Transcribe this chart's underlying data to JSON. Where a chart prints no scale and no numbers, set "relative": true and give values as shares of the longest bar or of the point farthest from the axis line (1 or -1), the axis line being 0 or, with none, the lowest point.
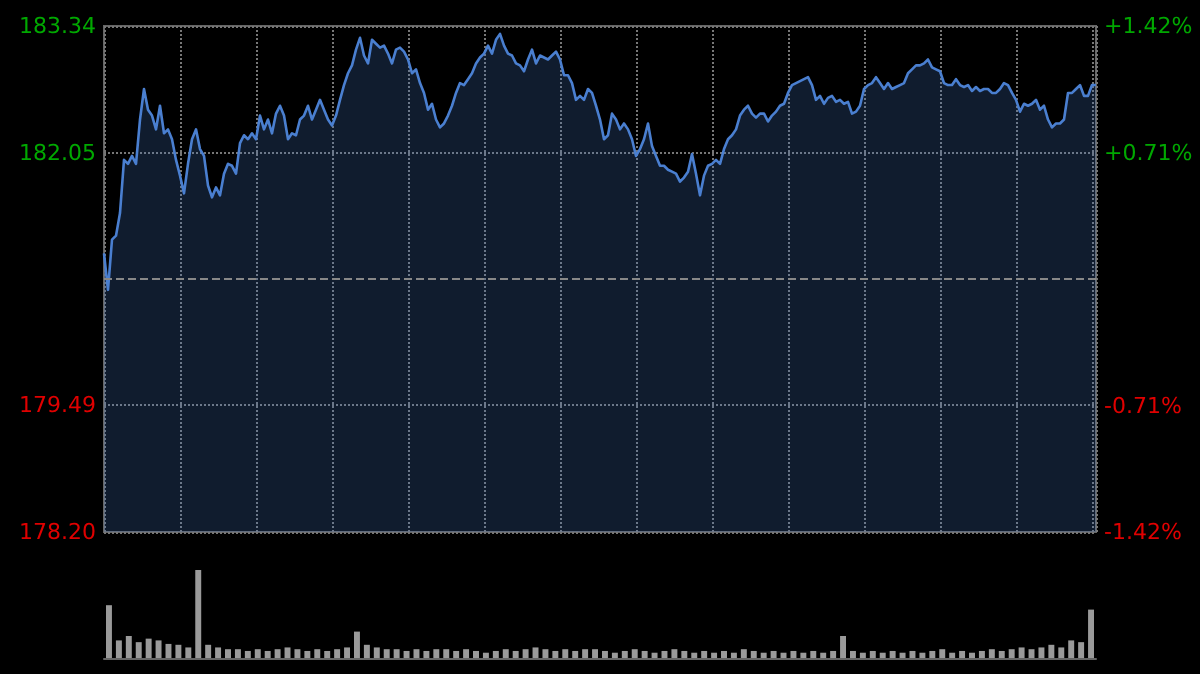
{
  "chart_data": [
    {
      "type": "area",
      "categories": [
        null,
        null,
        null,
        null,
        null,
        null,
        null,
        null,
        null,
        null,
        null,
        null,
        null,
        null,
        null,
        null,
        null,
        null,
        null,
        null,
        null,
        null,
        null,
        null,
        null,
        null,
        null,
        null,
        null,
        null,
        null,
        null,
        null,
        null,
        null,
        null,
        null,
        null,
        null,
        null,
        null,
        null,
        null,
        null,
        null,
        null,
        null,
        null,
        null,
        null,
        null,
        null,
        null,
        null,
        null,
        null,
        null,
        null,
        null,
        null,
        null,
        null,
        null,
        null,
        null,
        null,
        null,
        null,
        null,
        null,
        null,
        null,
        null,
        null,
        null,
        null,
        null,
        null,
        null,
        null,
        null,
        null,
        null,
        null,
        null,
        null,
        null,
        null,
        null,
        null,
        null,
        null,
        null,
        null,
        null,
        null,
        null,
        null,
        null,
        null,
        null,
        null,
        null,
        null,
        null,
        null,
        null,
        null,
        null,
        null,
        null,
        null,
        null,
        null,
        null,
        null,
        null,
        null,
        null,
        null,
        null,
        null,
        null,
        null,
        null,
        null,
        null,
        null,
        null,
        null,
        null,
        null,
        null,
        null,
        null,
        null,
        null,
        null,
        null,
        null,
        null,
        null,
        null,
        null,
        null,
        null,
        null,
        null,
        null,
        null,
        null,
        null,
        null,
        null,
        null,
        null,
        null,
        null,
        null,
        null,
        null,
        null,
        null,
        null,
        null,
        null,
        null,
        null,
        null,
        null,
        null,
        null,
        null,
        null,
        null,
        null,
        null,
        null,
        null,
        null,
        null,
        null,
        null,
        null,
        null,
        null,
        null,
        null,
        null,
        null,
        null,
        null,
        null,
        null,
        null,
        null,
        null,
        null,
        null,
        null,
        null,
        null,
        null,
        null,
        null,
        null,
        null,
        null,
        null,
        null,
        null,
        null,
        null,
        null,
        null,
        null,
        null,
        null,
        null,
        null,
        null,
        null,
        null,
        null,
        null,
        null,
        null,
        null,
        null,
        null,
        null,
        null,
        null,
        null,
        null,
        null,
        null,
        null,
        null,
        null,
        null,
        null,
        null,
        null,
        null,
        null,
        null,
        null,
        null
      ],
      "series": [
        {
          "color": "#4a7fd0",
          "values": [
            181.03,
            180.66,
            181.17,
            181.21,
            181.44,
            181.98,
            181.94,
            182.02,
            181.94,
            182.39,
            182.7,
            182.49,
            182.43,
            182.29,
            182.53,
            182.25,
            182.29,
            182.19,
            181.98,
            181.82,
            181.64,
            181.94,
            182.19,
            182.29,
            182.09,
            182.02,
            181.72,
            181.6,
            181.7,
            181.62,
            181.84,
            181.94,
            181.92,
            181.84,
            182.15,
            182.23,
            182.19,
            182.25,
            182.19,
            182.43,
            182.29,
            182.39,
            182.25,
            182.45,
            182.53,
            182.43,
            182.19,
            182.25,
            182.23,
            182.39,
            182.43,
            182.53,
            182.39,
            182.49,
            182.59,
            182.49,
            182.39,
            182.33,
            182.43,
            182.59,
            182.74,
            182.86,
            182.94,
            183.1,
            183.22,
            183.04,
            182.96,
            183.2,
            183.16,
            183.12,
            183.14,
            183.06,
            182.96,
            183.1,
            183.12,
            183.08,
            183.0,
            182.86,
            182.9,
            182.76,
            182.66,
            182.49,
            182.55,
            182.39,
            182.31,
            182.35,
            182.43,
            182.53,
            182.66,
            182.76,
            182.74,
            182.8,
            182.86,
            182.96,
            183.02,
            183.06,
            183.14,
            183.06,
            183.2,
            183.26,
            183.14,
            183.06,
            183.04,
            182.96,
            182.94,
            182.88,
            183.0,
            183.1,
            182.96,
            183.04,
            183.02,
            183.0,
            183.04,
            183.08,
            183.0,
            182.84,
            182.84,
            182.76,
            182.59,
            182.63,
            182.59,
            182.7,
            182.66,
            182.53,
            182.39,
            182.19,
            182.23,
            182.45,
            182.39,
            182.29,
            182.35,
            182.29,
            182.19,
            182.02,
            182.09,
            182.19,
            182.35,
            182.12,
            182.02,
            181.92,
            181.92,
            181.88,
            181.86,
            181.84,
            181.76,
            181.8,
            181.86,
            182.04,
            181.84,
            181.62,
            181.82,
            181.92,
            181.94,
            181.98,
            181.94,
            182.09,
            182.19,
            182.23,
            182.29,
            182.43,
            182.49,
            182.53,
            182.45,
            182.41,
            182.45,
            182.45,
            182.37,
            182.43,
            182.47,
            182.53,
            182.55,
            182.66,
            182.74,
            182.76,
            182.78,
            182.8,
            182.82,
            182.74,
            182.59,
            182.63,
            182.55,
            182.61,
            182.63,
            182.57,
            182.59,
            182.55,
            182.57,
            182.45,
            182.47,
            182.53,
            182.7,
            182.74,
            182.76,
            182.82,
            182.76,
            182.7,
            182.76,
            182.7,
            182.72,
            182.74,
            182.76,
            182.86,
            182.9,
            182.94,
            182.94,
            182.96,
            183.0,
            182.92,
            182.9,
            182.88,
            182.76,
            182.74,
            182.74,
            182.8,
            182.74,
            182.72,
            182.74,
            182.68,
            182.72,
            182.68,
            182.7,
            182.7,
            182.66,
            182.66,
            182.7,
            182.76,
            182.74,
            182.66,
            182.59,
            182.47,
            182.55,
            182.53,
            182.55,
            182.59,
            182.49,
            182.53,
            182.39,
            182.31,
            182.35,
            182.35,
            182.39,
            182.66,
            182.66,
            182.7,
            182.74,
            182.63,
            182.63,
            182.74,
            182.74
          ]
        }
      ],
      "ylim": [
        178.2,
        183.34
      ],
      "yticks": [
        {
          "value": 178.2,
          "label": "178.20"
        },
        179.49,
        182.05,
        183.34
      ],
      "y2lim": [
        -1.42,
        1.42
      ],
      "y2ticks": [
        {
          "value": -1.42,
          "label": "-1.42%"
        },
        {
          "value": -0.71,
          "label": "-0.71%"
        },
        {
          "value": 0.71,
          "label": "+0.71%"
        },
        {
          "value": 1.42,
          "label": "+1.42%"
        }
      ],
      "ref_lines": [
        {
          "axis": "y",
          "value": 180.77,
          "line_style": "dashed"
        }
      ],
      "grid": true
    },
    {
      "type": "bar",
      "relative": true,
      "categories": [
        null,
        null,
        null,
        null,
        null,
        null,
        null,
        null,
        null,
        null,
        null,
        null,
        null,
        null,
        null,
        null,
        null,
        null,
        null,
        null,
        null,
        null,
        null,
        null,
        null,
        null,
        null,
        null,
        null,
        null,
        null,
        null,
        null,
        null,
        null,
        null,
        null,
        null,
        null,
        null,
        null,
        null,
        null,
        null,
        null,
        null,
        null,
        null,
        null,
        null,
        null,
        null,
        null,
        null,
        null,
        null,
        null,
        null,
        null,
        null,
        null,
        null,
        null,
        null,
        null,
        null,
        null,
        null,
        null,
        null,
        null,
        null,
        null,
        null,
        null,
        null,
        null,
        null,
        null,
        null,
        null,
        null,
        null,
        null,
        null,
        null,
        null,
        null,
        null,
        null,
        null,
        null,
        null,
        null,
        null,
        null,
        null,
        null,
        null,
        null
      ],
      "series": [
        {
          "color": "#9a9a9a",
          "values": [
            0.6,
            0.2,
            0.25,
            0.18,
            0.22,
            0.2,
            0.16,
            0.15,
            0.12,
            1.0,
            0.15,
            0.12,
            0.1,
            0.1,
            0.08,
            0.1,
            0.08,
            0.1,
            0.12,
            0.1,
            0.08,
            0.1,
            0.08,
            0.1,
            0.12,
            0.3,
            0.15,
            0.12,
            0.1,
            0.1,
            0.08,
            0.1,
            0.08,
            0.1,
            0.1,
            0.08,
            0.1,
            0.08,
            0.06,
            0.08,
            0.1,
            0.08,
            0.1,
            0.12,
            0.1,
            0.08,
            0.1,
            0.08,
            0.1,
            0.1,
            0.08,
            0.06,
            0.08,
            0.1,
            0.08,
            0.06,
            0.08,
            0.1,
            0.08,
            0.06,
            0.08,
            0.06,
            0.08,
            0.06,
            0.1,
            0.08,
            0.06,
            0.08,
            0.06,
            0.08,
            0.06,
            0.08,
            0.06,
            0.08,
            0.25,
            0.08,
            0.06,
            0.08,
            0.06,
            0.08,
            0.06,
            0.08,
            0.06,
            0.08,
            0.1,
            0.06,
            0.08,
            0.06,
            0.08,
            0.1,
            0.08,
            0.1,
            0.12,
            0.1,
            0.12,
            0.15,
            0.12,
            0.2,
            0.18,
            0.55
          ]
        }
      ]
    }
  ]
}
